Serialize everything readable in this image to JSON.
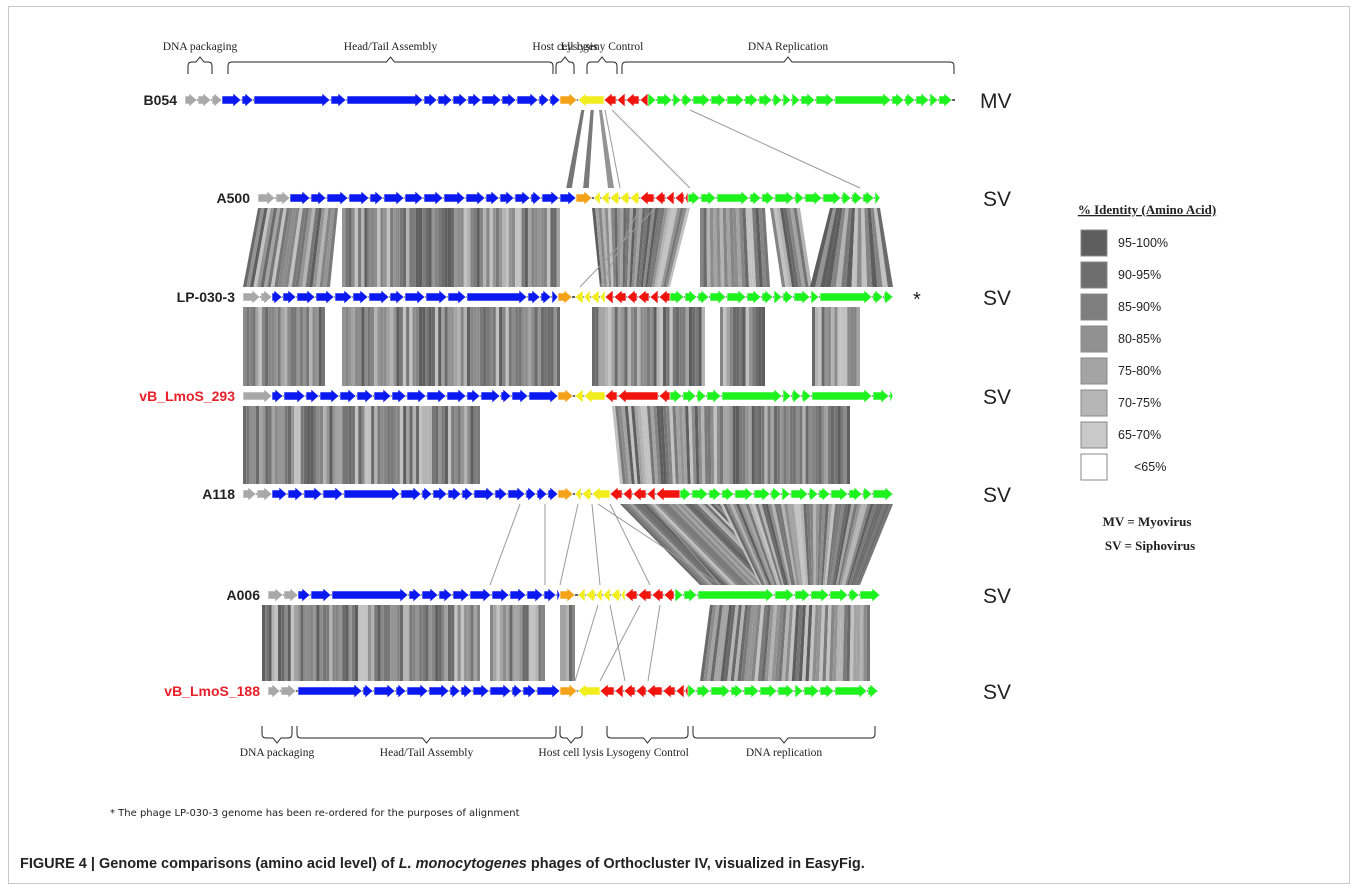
{
  "figure": {
    "caption_label": "FIGURE 4 | ",
    "caption_prefix": "Genome comparisons (amino acid level) of ",
    "caption_species": "L. monocytogenes",
    "caption_suffix": " phages of Orthocluster IV, visualized in EasyFig.",
    "footnote": "* The phage LP-030-3 genome has been re-ordered for the purposes of alignment"
  },
  "regions_top": [
    "DNA packaging",
    "Head/Tail Assembly",
    "Host cell lysis",
    "Lysogeny Control",
    "DNA Replication"
  ],
  "regions_bottom": [
    "DNA packaging",
    "Head/Tail Assembly",
    "Host cell lysis",
    "Lysogeny Control",
    "DNA replication"
  ],
  "genomes": [
    {
      "name": "B054",
      "type": "MV",
      "highlight": false,
      "marker": ""
    },
    {
      "name": "A500",
      "type": "SV",
      "highlight": false,
      "marker": ""
    },
    {
      "name": "LP-030-3",
      "type": "SV",
      "highlight": false,
      "marker": "*"
    },
    {
      "name": "vB_LmoS_293",
      "type": "SV",
      "highlight": true,
      "marker": ""
    },
    {
      "name": "A118",
      "type": "SV",
      "highlight": false,
      "marker": ""
    },
    {
      "name": "A006",
      "type": "SV",
      "highlight": false,
      "marker": ""
    },
    {
      "name": "vB_LmoS_188",
      "type": "SV",
      "highlight": true,
      "marker": ""
    }
  ],
  "legend": {
    "title": "% Identity (Amino Acid)",
    "items": [
      {
        "label": "95-100%",
        "color": "#5e5e5e"
      },
      {
        "label": "90-95%",
        "color": "#6e6e6e"
      },
      {
        "label": "85-90%",
        "color": "#7e7e7e"
      },
      {
        "label": "80-85%",
        "color": "#919191"
      },
      {
        "label": "75-80%",
        "color": "#a4a4a4"
      },
      {
        "label": "70-75%",
        "color": "#b6b6b6"
      },
      {
        "label": "65-70%",
        "color": "#c9c9c9"
      },
      {
        "label": "<65%",
        "color": "#ffffff"
      }
    ],
    "mv_note": "MV = Myovirus",
    "sv_note": "SV = Siphovirus"
  },
  "gene_colors": {
    "dna_packaging": "#a8a8a8",
    "head_tail": "#0a19f0",
    "lysis": "#f5a21b",
    "lysis_minor": "#f2ee1e",
    "lysogeny": "#f0140f",
    "replication": "#1ef21e",
    "highlight_label": "#e8202a"
  }
}
